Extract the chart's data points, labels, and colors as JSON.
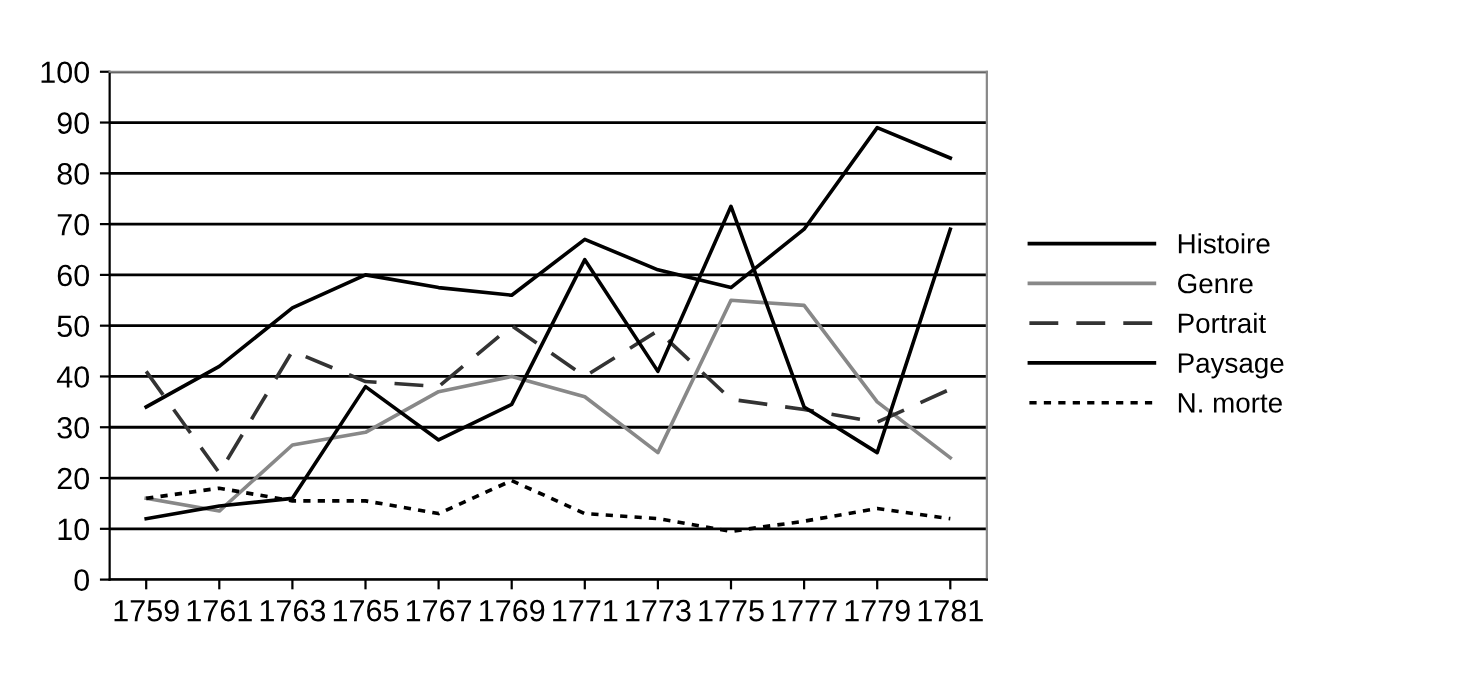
{
  "chart_data": {
    "type": "line",
    "categories": [
      "1759",
      "1761",
      "1763",
      "1765",
      "1767",
      "1769",
      "1771",
      "1773",
      "1775",
      "1777",
      "1779",
      "1781"
    ],
    "series": [
      {
        "name": "Histoire",
        "color": "#000000",
        "line_style": "solid",
        "values": [
          34,
          42,
          53.5,
          60,
          57.5,
          56,
          67,
          61,
          57.5,
          69,
          89,
          83
        ]
      },
      {
        "name": "Genre",
        "color": "#888888",
        "line_style": "solid",
        "values": [
          16,
          13.5,
          26.5,
          29,
          37,
          40,
          36,
          25,
          55,
          54,
          35,
          24
        ]
      },
      {
        "name": "Portrait",
        "color": "#333333",
        "line_style": "dashed",
        "values": [
          41,
          21,
          45,
          39,
          38,
          50,
          40,
          49,
          35.5,
          33.5,
          31,
          37.5
        ]
      },
      {
        "name": "Paysage",
        "color": "#000000",
        "line_style": "solid",
        "values": [
          12,
          14.5,
          16,
          38,
          27.5,
          34.5,
          63,
          41,
          73.5,
          34,
          25,
          69
        ]
      },
      {
        "name": "N. morte",
        "color": "#000000",
        "line_style": "dotted",
        "values": [
          16,
          18,
          15.5,
          15.5,
          13,
          19.5,
          13,
          12,
          9.5,
          11.5,
          14,
          12
        ]
      }
    ],
    "ylim": [
      0,
      100
    ],
    "yticks": [
      0,
      10,
      20,
      30,
      40,
      50,
      60,
      70,
      80,
      90,
      100
    ],
    "grid": "y",
    "legend": "right",
    "marker": "none"
  }
}
